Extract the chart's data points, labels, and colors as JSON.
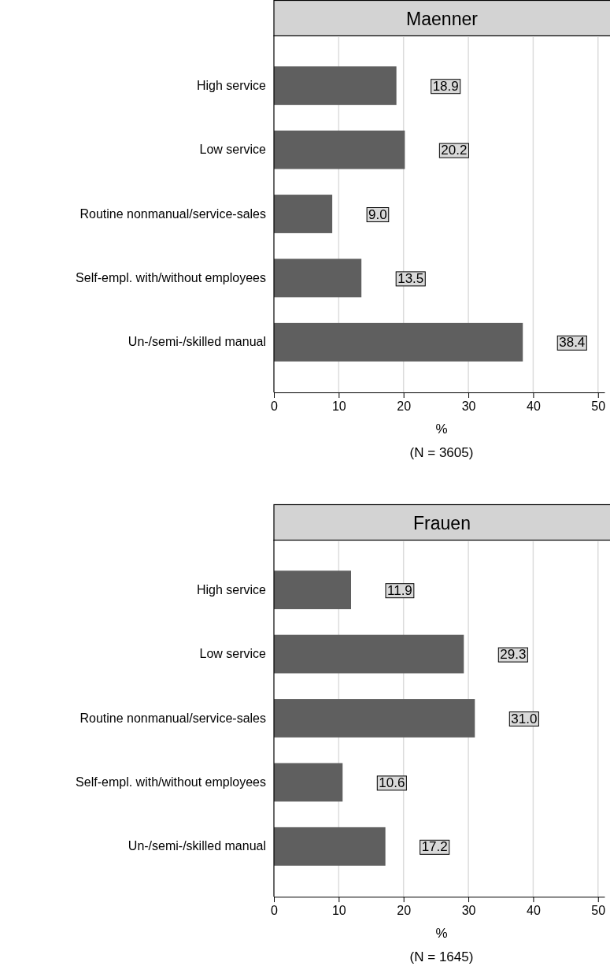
{
  "chart_data": [
    {
      "type": "bar",
      "orientation": "horizontal",
      "title": "Maenner",
      "categories": [
        "High service",
        "Low service",
        "Routine nonmanual/service-sales",
        "Self-empl. with/without employees",
        "Un-/semi-/skilled manual"
      ],
      "values": [
        18.9,
        20.2,
        9.0,
        13.5,
        38.4
      ],
      "value_labels": [
        "18.9",
        "20.2",
        "9.0",
        "13.5",
        "38.4"
      ],
      "color": "#5f5f5f",
      "xlim": [
        0,
        51
      ],
      "xticks": [
        0,
        10,
        20,
        30,
        40,
        50
      ],
      "grid": "x",
      "xlabel": "%",
      "annotations": [
        "(N = 3605)"
      ]
    },
    {
      "type": "bar",
      "orientation": "horizontal",
      "title": "Frauen",
      "categories": [
        "High service",
        "Low service",
        "Routine nonmanual/service-sales",
        "Self-empl. with/without employees",
        "Un-/semi-/skilled manual"
      ],
      "values": [
        11.9,
        29.3,
        31.0,
        10.6,
        17.2
      ],
      "value_labels": [
        "11.9",
        "29.3",
        "31.0",
        "10.6",
        "17.2"
      ],
      "color": "#5f5f5f",
      "xlim": [
        0,
        51
      ],
      "xticks": [
        0,
        10,
        20,
        30,
        40,
        50
      ],
      "grid": "x",
      "xlabel": "%",
      "annotations": [
        "(N = 1645)"
      ]
    }
  ]
}
